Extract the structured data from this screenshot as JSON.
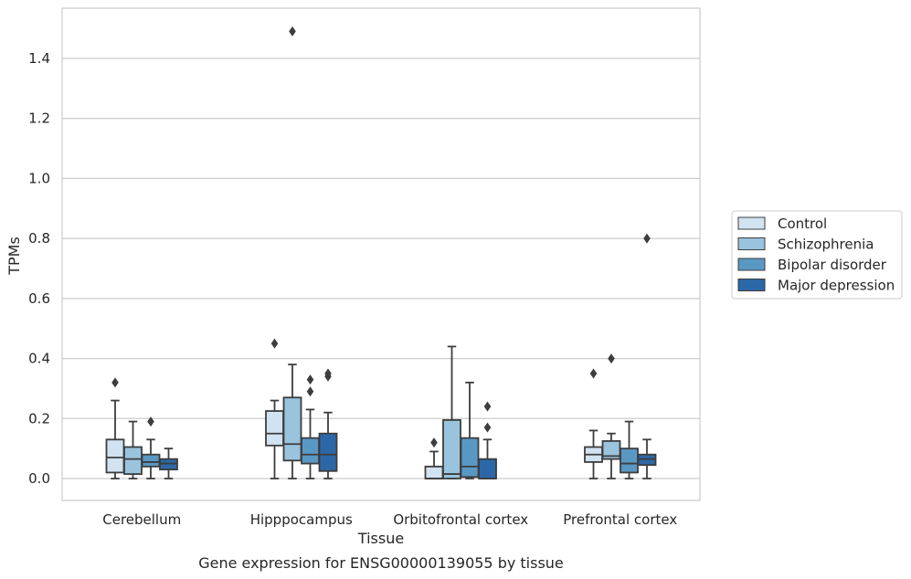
{
  "chart_data": {
    "type": "box",
    "caption": "Gene expression for ENSG00000139055 by tissue",
    "xlabel": "Tissue",
    "ylabel": "TPMs",
    "ylim": [
      -0.07,
      1.575
    ],
    "yticks": [
      "0.0",
      "0.2",
      "0.4",
      "0.6",
      "0.8",
      "1.0",
      "1.2",
      "1.4"
    ],
    "ytick_values": [
      0.0,
      0.2,
      0.4,
      0.6,
      0.8,
      1.0,
      1.2,
      1.4
    ],
    "grid": true,
    "legend_position": "right",
    "categories": [
      "Cerebellum",
      "Hipppocampus",
      "Orbitofrontal cortex",
      "Prefrontal cortex"
    ],
    "series": [
      {
        "name": "Control",
        "color": "#d1e2f1",
        "boxes": [
          {
            "q1": 0.02,
            "median": 0.07,
            "q3": 0.13,
            "whislo": 0.0,
            "whishi": 0.26,
            "fliers": [
              0.32
            ]
          },
          {
            "q1": 0.11,
            "median": 0.15,
            "q3": 0.225,
            "whislo": 0.0,
            "whishi": 0.26,
            "fliers": [
              0.45
            ]
          },
          {
            "q1": 0.0,
            "median": 0.0,
            "q3": 0.04,
            "whislo": 0.0,
            "whishi": 0.09,
            "fliers": [
              0.12
            ]
          },
          {
            "q1": 0.055,
            "median": 0.08,
            "q3": 0.105,
            "whislo": 0.0,
            "whishi": 0.16,
            "fliers": [
              0.35
            ]
          }
        ]
      },
      {
        "name": "Schizophrenia",
        "color": "#9ac3dd",
        "boxes": [
          {
            "q1": 0.015,
            "median": 0.065,
            "q3": 0.105,
            "whislo": 0.0,
            "whishi": 0.19,
            "fliers": []
          },
          {
            "q1": 0.06,
            "median": 0.115,
            "q3": 0.27,
            "whislo": 0.0,
            "whishi": 0.38,
            "fliers": [
              1.49
            ]
          },
          {
            "q1": 0.0,
            "median": 0.015,
            "q3": 0.195,
            "whislo": 0.0,
            "whishi": 0.44,
            "fliers": []
          },
          {
            "q1": 0.065,
            "median": 0.075,
            "q3": 0.125,
            "whislo": 0.0,
            "whishi": 0.15,
            "fliers": [
              0.4
            ]
          }
        ]
      },
      {
        "name": "Bipolar disorder",
        "color": "#5a98c4",
        "boxes": [
          {
            "q1": 0.04,
            "median": 0.055,
            "q3": 0.08,
            "whislo": 0.0,
            "whishi": 0.13,
            "fliers": [
              0.19
            ]
          },
          {
            "q1": 0.05,
            "median": 0.08,
            "q3": 0.135,
            "whislo": 0.0,
            "whishi": 0.23,
            "fliers": [
              0.29,
              0.33
            ]
          },
          {
            "q1": 0.005,
            "median": 0.04,
            "q3": 0.135,
            "whislo": 0.0,
            "whishi": 0.32,
            "fliers": []
          },
          {
            "q1": 0.02,
            "median": 0.05,
            "q3": 0.1,
            "whislo": 0.0,
            "whishi": 0.19,
            "fliers": []
          }
        ]
      },
      {
        "name": "Major depression",
        "color": "#2c68a7",
        "boxes": [
          {
            "q1": 0.03,
            "median": 0.05,
            "q3": 0.065,
            "whislo": 0.0,
            "whishi": 0.1,
            "fliers": []
          },
          {
            "q1": 0.025,
            "median": 0.08,
            "q3": 0.15,
            "whislo": 0.0,
            "whishi": 0.22,
            "fliers": [
              0.34,
              0.35
            ]
          },
          {
            "q1": 0.0,
            "median": 0.0,
            "q3": 0.065,
            "whislo": 0.0,
            "whishi": 0.13,
            "fliers": [
              0.17,
              0.24
            ]
          },
          {
            "q1": 0.045,
            "median": 0.065,
            "q3": 0.08,
            "whislo": 0.0,
            "whishi": 0.13,
            "fliers": [
              0.8
            ]
          }
        ]
      }
    ]
  }
}
